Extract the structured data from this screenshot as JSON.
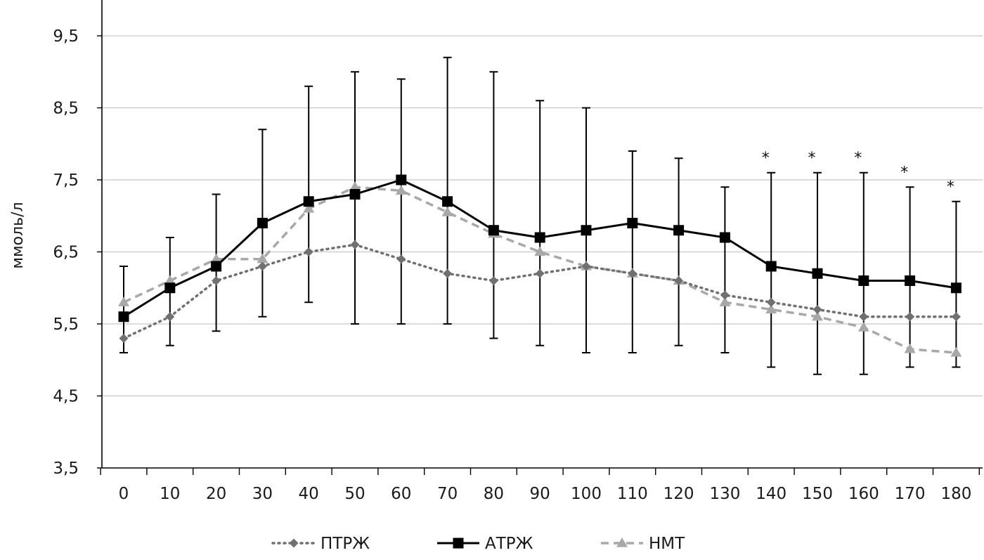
{
  "chart_data": {
    "type": "line",
    "title": "",
    "xlabel": "",
    "ylabel": "ммоль/л",
    "x": [
      0,
      10,
      20,
      30,
      40,
      50,
      60,
      70,
      80,
      90,
      100,
      110,
      120,
      130,
      140,
      150,
      160,
      170,
      180
    ],
    "x_tick_labels": [
      "0",
      "10",
      "20",
      "30",
      "40",
      "50",
      "60",
      "70",
      "80",
      "90",
      "100",
      "110",
      "120",
      "130",
      "140",
      "150",
      "160",
      "170",
      "180"
    ],
    "ylim": [
      3.5,
      10
    ],
    "y_ticks": [
      3.5,
      4.5,
      5.5,
      6.5,
      7.5,
      8.5,
      9.5
    ],
    "y_tick_labels": [
      "3,5",
      "4,5",
      "5,5",
      "6,5",
      "7,5",
      "8,5",
      "9,5"
    ],
    "grid": "horizontal",
    "legend_position": "bottom",
    "series": [
      {
        "name": "ПТРЖ",
        "color": "#707070",
        "line_style": "dotted",
        "marker": "diamond",
        "values": [
          5.3,
          5.6,
          6.1,
          6.3,
          6.5,
          6.6,
          6.4,
          6.2,
          6.1,
          6.2,
          6.3,
          6.2,
          6.1,
          5.9,
          5.8,
          5.7,
          5.6,
          5.6,
          5.6
        ]
      },
      {
        "name": "АТРЖ",
        "color": "#000000",
        "line_style": "solid",
        "marker": "square",
        "values": [
          5.6,
          6.0,
          6.3,
          6.9,
          7.2,
          7.3,
          7.5,
          7.2,
          6.8,
          6.7,
          6.8,
          6.9,
          6.8,
          6.7,
          6.3,
          6.2,
          6.1,
          6.1,
          6.0
        ],
        "error_low": [
          5.1,
          5.2,
          5.4,
          5.6,
          5.8,
          5.5,
          5.5,
          5.5,
          5.3,
          5.2,
          5.1,
          5.1,
          5.2,
          5.1,
          4.9,
          4.8,
          4.8,
          4.9,
          4.9
        ],
        "error_high": [
          6.3,
          6.7,
          7.3,
          8.2,
          8.8,
          9.0,
          8.9,
          9.2,
          9.0,
          8.6,
          8.5,
          7.9,
          7.8,
          7.4,
          7.6,
          7.6,
          7.6,
          7.4,
          7.2
        ]
      },
      {
        "name": "НМТ",
        "color": "#a8a8a8",
        "line_style": "dashed",
        "marker": "triangle",
        "values": [
          5.8,
          6.1,
          6.4,
          6.4,
          7.1,
          7.4,
          7.35,
          7.05,
          6.75,
          6.5,
          6.3,
          6.2,
          6.1,
          5.8,
          5.7,
          5.6,
          5.45,
          5.15,
          5.1
        ]
      }
    ],
    "significance_markers": [
      {
        "x": 140,
        "label": "*"
      },
      {
        "x": 150,
        "label": "*"
      },
      {
        "x": 160,
        "label": "*"
      },
      {
        "x": 170,
        "label": "*"
      },
      {
        "x": 180,
        "label": "*"
      }
    ]
  }
}
